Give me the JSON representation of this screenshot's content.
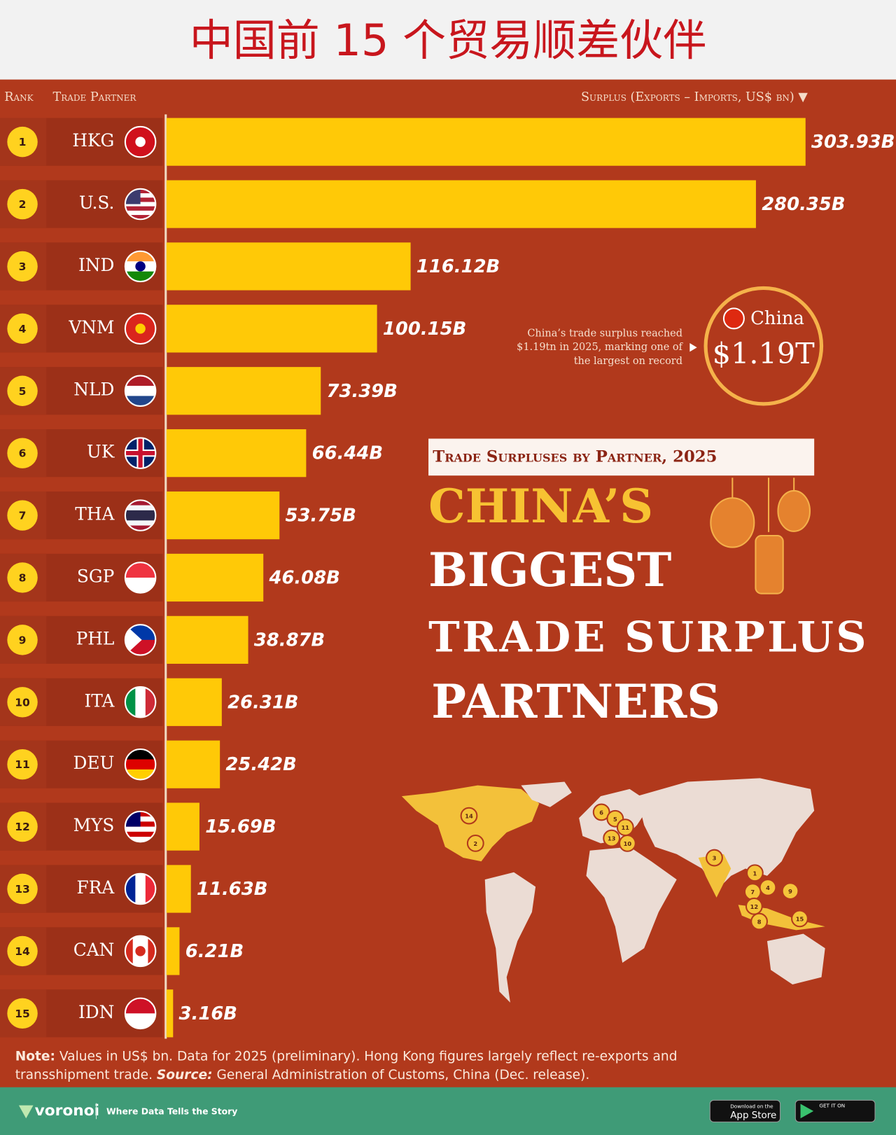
{
  "header": {
    "title": "中国前 15 个贸易顺差伙伴"
  },
  "chart_data": {
    "type": "bar",
    "orientation": "horizontal",
    "column_headers": [
      "Rank",
      "Trade Partner",
      "Surplus (Exports – Imports, US$ bn) ▼"
    ],
    "ranks": [
      1,
      2,
      3,
      4,
      5,
      6,
      7,
      8,
      9,
      10,
      11,
      12,
      13,
      14,
      15
    ],
    "categories": [
      "HKG",
      "U.S.",
      "IND",
      "VNM",
      "NLD",
      "UK",
      "THA",
      "SGP",
      "PHL",
      "ITA",
      "DEU",
      "MYS",
      "FRA",
      "CAN",
      "IDN"
    ],
    "values": [
      303.93,
      280.35,
      116.12,
      100.15,
      73.39,
      66.44,
      53.75,
      46.08,
      38.87,
      26.31,
      25.42,
      15.69,
      11.63,
      6.21,
      3.16
    ],
    "value_labels": [
      "303.93B",
      "280.35B",
      "116.12B",
      "100.15B",
      "73.39B",
      "66.44B",
      "53.75B",
      "46.08B",
      "38.87B",
      "26.31B",
      "25.42B",
      "15.69B",
      "11.63B",
      "6.21B",
      "3.16B"
    ],
    "color": "#ffc907"
  },
  "callout": {
    "lines": [
      "China’s trade surplus reached",
      "$1.19tn in 2025, marking one of",
      "the largest on record"
    ],
    "country": "China",
    "total": "$1.19T"
  },
  "title_block": {
    "subtitle": "Trade Surpluses by Partner, 2025",
    "lines": [
      "CHINA’S",
      "BIGGEST",
      "TRADE SURPLUS",
      "PARTNERS"
    ]
  },
  "map": {
    "markers": [
      14,
      2,
      6,
      5,
      11,
      13,
      10,
      3,
      1,
      7,
      4,
      9,
      12,
      8,
      15
    ]
  },
  "note": {
    "line1": [
      " Values in US$ bn. Data for 2025 (preliminary). Hong Kong figures largely reflect re-exports and"
    ],
    "label_note": "Note:",
    "line2_start": "transshipment trade. ",
    "label_source": "Source:",
    "line2_end": " General Administration of Customs, China (Dec. release)."
  },
  "footer": {
    "brand": "voronoi",
    "tagline": "Where Data Tells the Story",
    "appstore_small": "Download on the",
    "appstore": "App Store",
    "play_small": "GET IT ON"
  }
}
